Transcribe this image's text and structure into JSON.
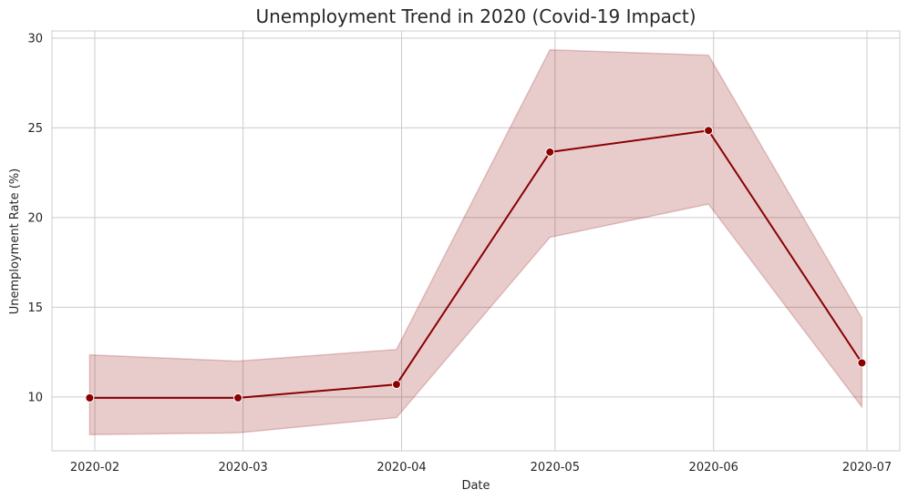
{
  "chart_data": {
    "type": "line",
    "title": "Unemployment Trend in 2020 (Covid-19 Impact)",
    "xlabel": "Date",
    "ylabel": "Unemployment Rate (%)",
    "x": [
      "2020-01-31",
      "2020-02-29",
      "2020-03-31",
      "2020-04-30",
      "2020-05-31",
      "2020-06-30"
    ],
    "x_ticks": [
      "2020-02-01",
      "2020-03-01",
      "2020-04-01",
      "2020-05-01",
      "2020-06-01",
      "2020-07-01"
    ],
    "x_tick_labels": [
      "2020-02",
      "2020-03",
      "2020-04",
      "2020-05",
      "2020-06",
      "2020-07"
    ],
    "ylim": [
      7.0,
      30.4
    ],
    "yticks": [
      10,
      15,
      20,
      25,
      30
    ],
    "grid": true,
    "series": [
      {
        "values": [
          9.95,
          9.95,
          10.7,
          23.65,
          24.85,
          11.9
        ],
        "ci_lower": [
          7.9,
          8.0,
          8.85,
          18.9,
          20.75,
          9.45
        ],
        "ci_upper": [
          12.35,
          12.0,
          12.65,
          29.35,
          29.05,
          14.4
        ]
      }
    ],
    "colors": {
      "line": "#8b0000",
      "band": "#8b0000",
      "grid": "#cccccc"
    }
  }
}
